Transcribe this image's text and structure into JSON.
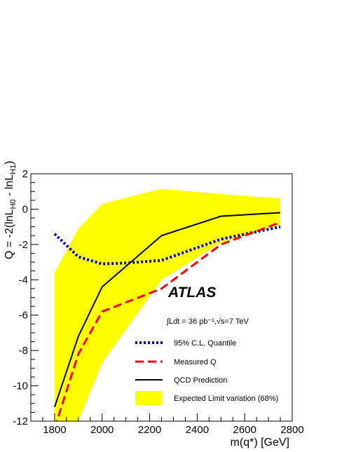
{
  "chart_data": {
    "type": "line",
    "xlabel": "m(q*) [GeV]",
    "ylabel": "Q = -2(lnL",
    "ylabel_sub1": "H0",
    "ylabel_mid": " - lnL",
    "ylabel_sub2": "H1",
    "ylabel_end": ")",
    "xlim": [
      1700,
      2800
    ],
    "ylim": [
      -12,
      2
    ],
    "xticks": [
      1800,
      2000,
      2200,
      2400,
      2600,
      2800
    ],
    "yticks": [
      -12,
      -10,
      -8,
      -6,
      -4,
      -2,
      0,
      2
    ],
    "grid": false,
    "legend_position": "bottom-right",
    "annotations": {
      "experiment": "ATLAS",
      "luminosity": "∫Ldt = 36 pb⁻¹,√s=7 TeV"
    },
    "band": {
      "name": "Expected Limit variation (68%)",
      "color": "#ffff00",
      "x": [
        1800,
        1900,
        2000,
        2250,
        2500,
        2750
      ],
      "upper": [
        -3.6,
        -1.1,
        0.3,
        1.15,
        0.85,
        0.6
      ],
      "lower": [
        -12,
        -12,
        -8.7,
        -4.0,
        -1.9,
        -0.9
      ]
    },
    "series": [
      {
        "name": "95% C.L. Quantile",
        "style": "dotted",
        "color": "#0000dd",
        "x": [
          1800,
          1900,
          2000,
          2100,
          2250,
          2500,
          2750
        ],
        "values": [
          -1.4,
          -2.7,
          -3.1,
          -3.05,
          -2.9,
          -1.7,
          -1.0
        ]
      },
      {
        "name": "Measured Q",
        "style": "dashed",
        "color": "#ff0000",
        "x": [
          1800,
          1900,
          2000,
          2250,
          2500,
          2750
        ],
        "values": [
          -12.4,
          -8.2,
          -5.8,
          -4.5,
          -2.0,
          -0.75
        ]
      },
      {
        "name": "QCD Prediction",
        "style": "solid",
        "color": "#000000",
        "x": [
          1800,
          1900,
          2000,
          2250,
          2500,
          2750
        ],
        "values": [
          -11.2,
          -7.2,
          -4.4,
          -1.5,
          -0.4,
          -0.2
        ]
      }
    ]
  }
}
